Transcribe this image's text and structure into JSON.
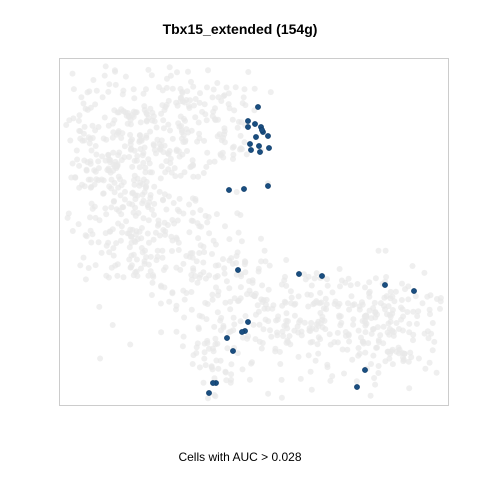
{
  "chart_data": {
    "type": "scatter",
    "title": "Tbx15_extended (154g)",
    "xlabel": "Cells with AUC > 0.028",
    "ylabel": "",
    "grid": false,
    "axes_visible": false,
    "background_points": {
      "description_color": "#e8e8e8",
      "color": "#e8e8e8"
    },
    "highlight_color": "#1a4e80",
    "series": [
      {
        "values": [
          [
            258,
            107
          ],
          [
            248,
            121
          ],
          [
            255,
            124
          ],
          [
            261,
            127
          ],
          [
            248,
            127
          ],
          [
            263,
            132
          ],
          [
            268,
            136
          ],
          [
            262,
            130
          ],
          [
            256,
            137
          ],
          [
            250,
            144
          ],
          [
            259,
            146
          ],
          [
            269,
            148
          ],
          [
            260,
            152
          ],
          [
            251,
            150
          ],
          [
            268,
            186
          ],
          [
            244,
            189
          ],
          [
            229,
            190
          ],
          [
            238,
            270
          ],
          [
            299,
            274
          ],
          [
            322,
            276
          ],
          [
            385,
            285
          ],
          [
            414,
            291
          ],
          [
            248,
            322
          ],
          [
            245,
            331
          ],
          [
            242,
            332
          ],
          [
            227,
            338
          ],
          [
            233,
            351
          ],
          [
            365,
            370
          ],
          [
            216,
            383
          ],
          [
            213,
            383
          ],
          [
            357,
            387
          ],
          [
            209,
            393
          ]
        ]
      }
    ]
  }
}
